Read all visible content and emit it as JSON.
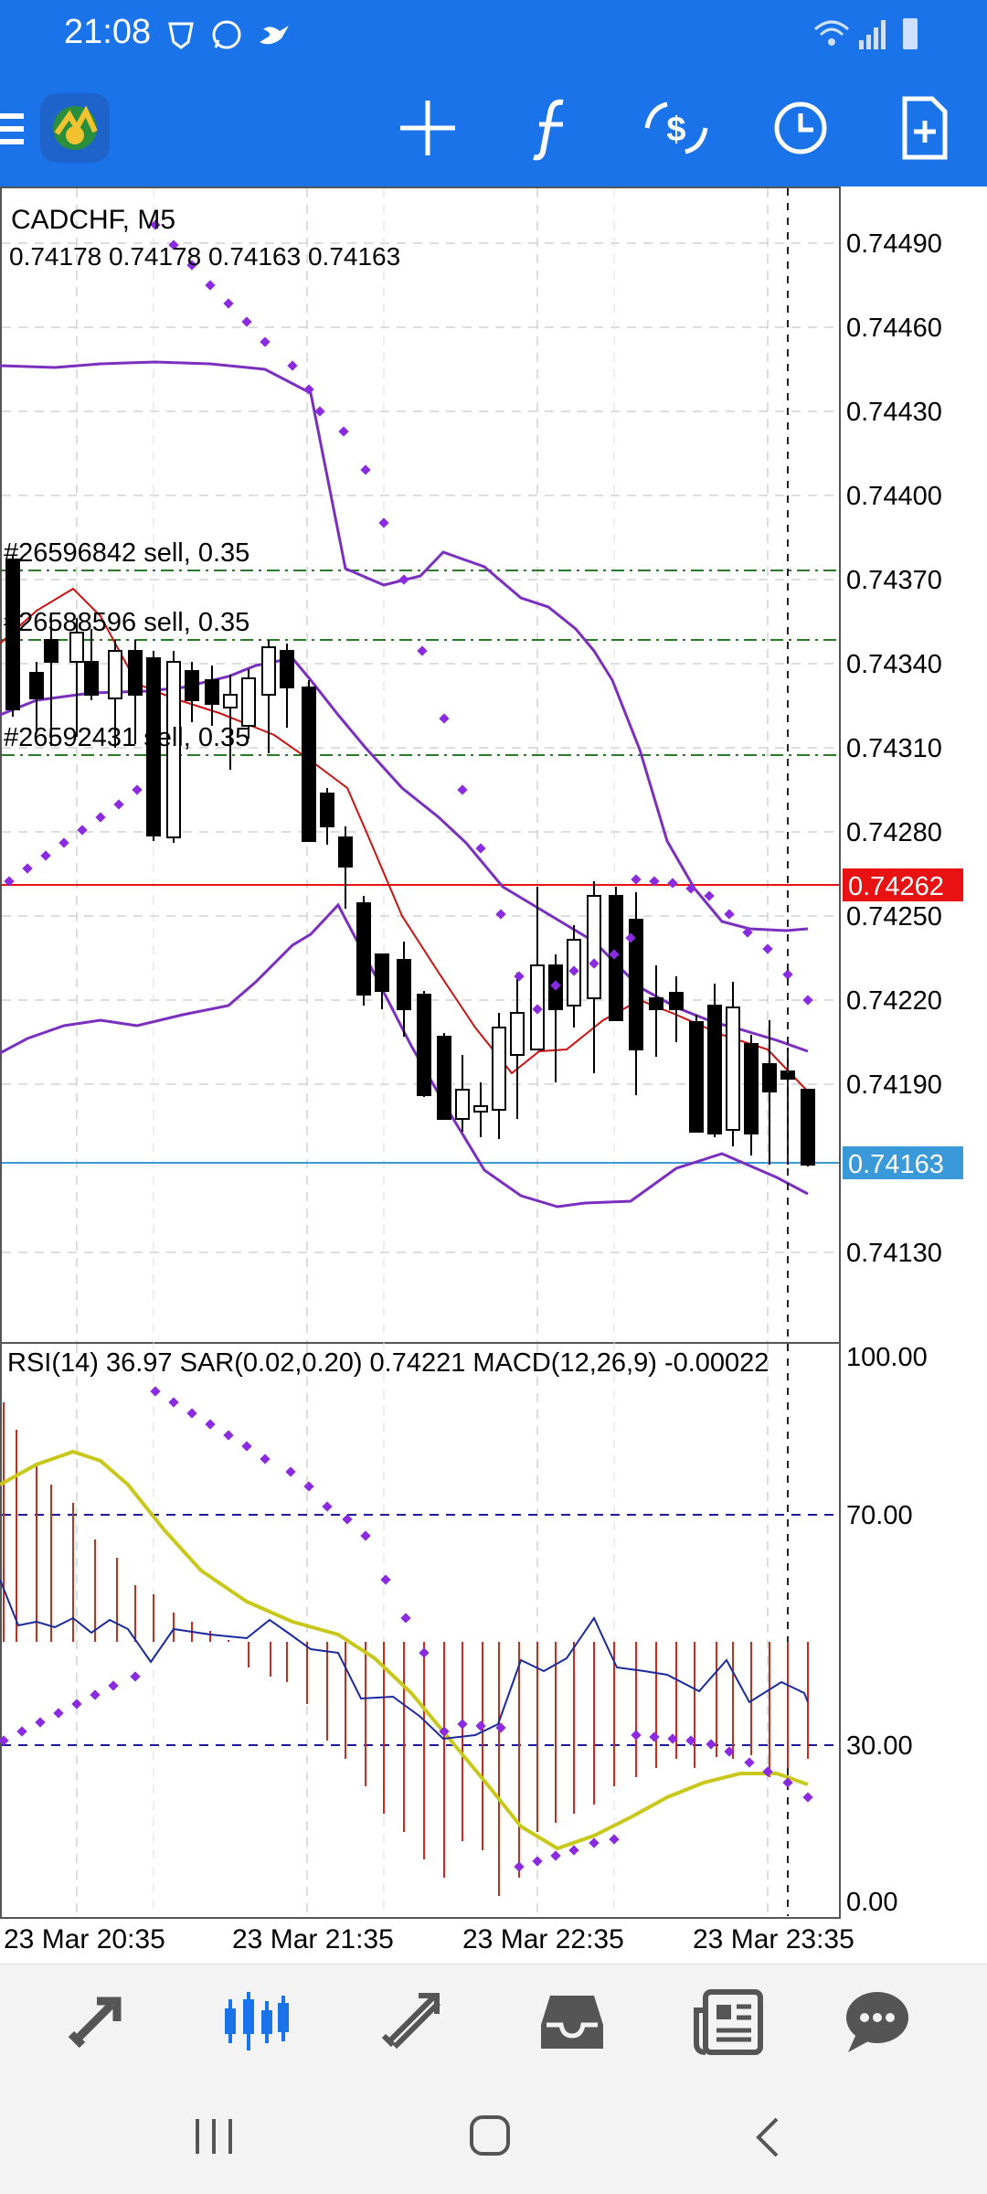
{
  "status_bar": {
    "time": "21:08"
  },
  "symbol_header": {
    "symbol": "CADCHF, M5",
    "ohlc": "0.74178 0.74178 0.74163 0.74163"
  },
  "main_chart": {
    "price_labels": [
      "0.74490",
      "0.74460",
      "0.74430",
      "0.74400",
      "0.74370",
      "0.74340",
      "0.74310",
      "0.74280",
      "0.74250",
      "0.74220",
      "0.74190",
      "0.74130"
    ],
    "ask_line": "0.74262",
    "bid_line": "0.74163",
    "orders": [
      {
        "label": "#26596842 sell, 0.35"
      },
      {
        "label": "#26588596 sell, 0.35"
      },
      {
        "label": "#26592431 sell, 0.35"
      }
    ]
  },
  "indicator_panel": {
    "header": "RSI(14) 36.97 SAR(0.02,0.20) 0.74221 MACD(12,26,9) -0.00022",
    "levels": [
      "100.00",
      "70.00",
      "30.00",
      "0.00"
    ]
  },
  "time_axis": [
    "23 Mar 20:35",
    "23 Mar 21:35",
    "23 Mar 22:35",
    "23 Mar 23:35"
  ],
  "colors": {
    "toolbar": "#1a73e8",
    "bull_candle": "#ffffff",
    "bear_candle": "#000000",
    "bollinger": "#7b2fbf",
    "ma": "#cc1111",
    "ask": "#e81212",
    "bid": "#3a9ad9",
    "signal": "#c8c81a",
    "rsi": "#1a2a9a",
    "histogram": "#cc2a1a",
    "nav_active": "#1a73e8",
    "nav_inactive": "#555555"
  },
  "toolbar_icons": [
    "menu-icon",
    "metatrader-logo-icon",
    "crosshair-icon",
    "indicators-icon",
    "trade-icon",
    "timeframe-icon",
    "new-order-icon"
  ],
  "bottom_nav": [
    {
      "icon": "quotes-icon",
      "active": false
    },
    {
      "icon": "chart-icon",
      "active": true
    },
    {
      "icon": "trade-icon",
      "active": false
    },
    {
      "icon": "history-icon",
      "active": false
    },
    {
      "icon": "news-icon",
      "active": false
    },
    {
      "icon": "messages-icon",
      "active": false
    }
  ]
}
